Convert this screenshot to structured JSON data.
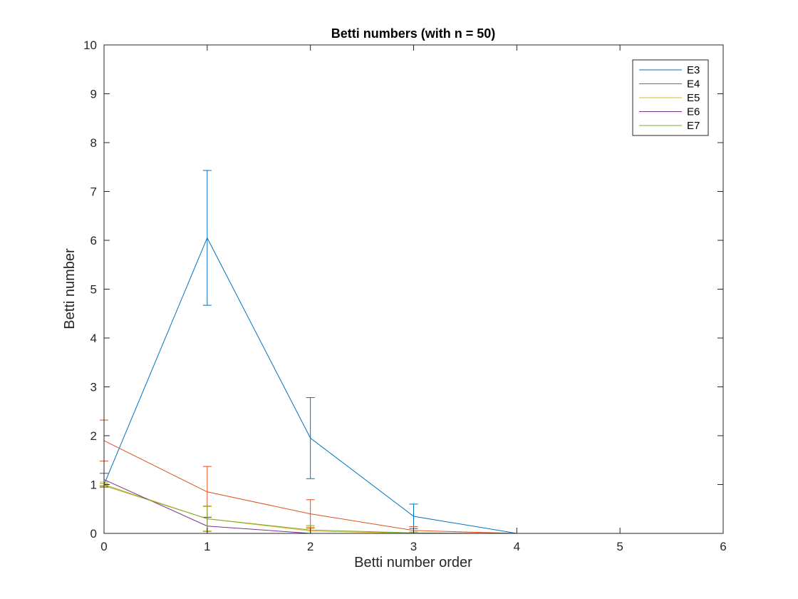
{
  "chart_data": {
    "type": "line",
    "title": "Betti numbers (with n = 50)",
    "xlabel": "Betti number order",
    "ylabel": "Betti number",
    "xlim": [
      0,
      6
    ],
    "ylim": [
      0,
      10
    ],
    "xticks": [
      "0",
      "1",
      "2",
      "3",
      "4",
      "5",
      "6"
    ],
    "yticks": [
      "0",
      "1",
      "2",
      "3",
      "4",
      "5",
      "6",
      "7",
      "8",
      "9",
      "10"
    ],
    "grid": false,
    "legend_position": "top-right",
    "x": [
      0,
      1,
      2,
      3,
      4,
      5,
      6
    ],
    "series": [
      {
        "name": "E3",
        "color": "#0072bd",
        "values": [
          1.0,
          6.05,
          1.95,
          0.35,
          0,
          0,
          0
        ],
        "error": [
          0.0,
          1.38,
          0.83,
          0.25,
          0,
          0,
          0
        ]
      },
      {
        "name": "E4",
        "color": "#d95319",
        "values": [
          1.9,
          0.85,
          0.4,
          0.06,
          0,
          0,
          0
        ],
        "error": [
          0.42,
          0.52,
          0.29,
          0.08,
          0,
          0,
          0
        ]
      },
      {
        "name": "E5",
        "color": "#edb120",
        "values": [
          1.0,
          0.3,
          0.05,
          0.0,
          0,
          0,
          0
        ],
        "error": [
          0.05,
          0.25,
          0.08,
          0.0,
          0,
          0,
          0
        ]
      },
      {
        "name": "E6",
        "color": "#7e2f8e",
        "values": [
          1.1,
          0.15,
          0.0,
          0.0,
          0,
          0,
          0
        ],
        "error": [
          0.13,
          0.18,
          0.0,
          0.0,
          0,
          0,
          0
        ]
      },
      {
        "name": "E7",
        "color": "#77ac30",
        "values": [
          0.98,
          0.3,
          0.07,
          0.01,
          0,
          0,
          0
        ],
        "error": [
          0.04,
          0.26,
          0.09,
          0.02,
          0,
          0,
          0
        ]
      }
    ]
  }
}
